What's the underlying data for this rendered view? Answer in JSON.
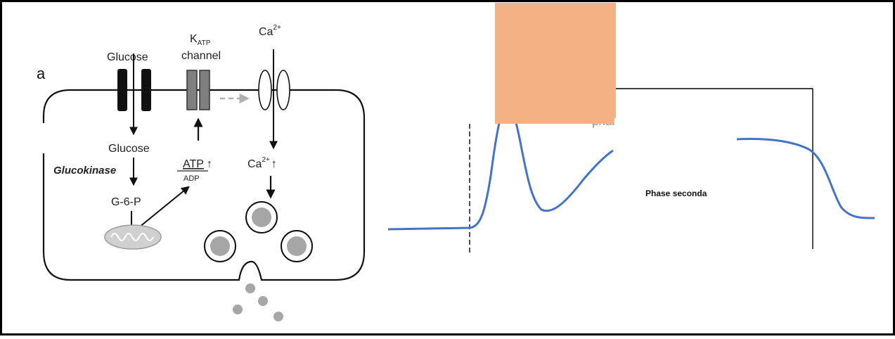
{
  "panel_a": {
    "letter": "a",
    "glucose_top": "Glucose",
    "katp_k": "K",
    "katp_sub": "ATP",
    "katp_channel": "channel",
    "ca_top": "Ca",
    "ca_top_sup": "2+",
    "glucose_inside": "Glucose",
    "glucokinase": "Glucokinase",
    "atp": "ATP",
    "atp_arrow": "↑",
    "adp": "ADP",
    "ca_inside": "Ca",
    "ca_inside_sup": "2+",
    "ca_inside_arrow": "↑",
    "g6p": "G-6-P"
  },
  "panel_b": {
    "partial_label": "phase",
    "phase_secondary": "Phase seconda"
  },
  "colors": {
    "curve": "#4472c4",
    "overlay": "#f4b183",
    "channel_dark": "#111111",
    "channel_grey": "#7f7f7f",
    "granule": "#a6a6a6"
  }
}
